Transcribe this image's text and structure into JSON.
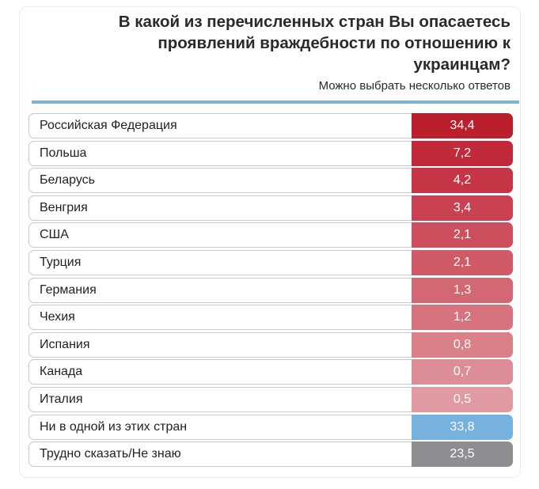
{
  "header": {
    "title": "В какой из перечисленных стран Вы опасаетесь проявлений враждебности по отношению к украинцам?",
    "subtitle": "Можно выбрать несколько ответов"
  },
  "colors": {
    "countries_strong": "#bb1f2e",
    "countries_light": "#e5a0a8",
    "none": "#77b2de",
    "dont_know": "#8e8e92",
    "rule": "#7bb3da"
  },
  "chart_data": {
    "type": "table",
    "title": "В какой из перечисленных стран Вы опасаетесь проявлений враждебности по отношению к украинцам?",
    "subtitle": "Можно выбрать несколько ответов",
    "rows": [
      {
        "label": "Российская Федерация",
        "value": "34,4",
        "color": "#bb1f2e"
      },
      {
        "label": "Польша",
        "value": "7,2",
        "color": "#c12a3a"
      },
      {
        "label": "Беларусь",
        "value": "4,2",
        "color": "#c63545"
      },
      {
        "label": "Венгрия",
        "value": "3,4",
        "color": "#ca4252"
      },
      {
        "label": "США",
        "value": "2,1",
        "color": "#cd4e5d"
      },
      {
        "label": "Турция",
        "value": "2,1",
        "color": "#d05a68"
      },
      {
        "label": "Германия",
        "value": "1,3",
        "color": "#d36773"
      },
      {
        "label": "Чехия",
        "value": "1,2",
        "color": "#d6737e"
      },
      {
        "label": "Испания",
        "value": "0,8",
        "color": "#d98089"
      },
      {
        "label": "Канада",
        "value": "0,7",
        "color": "#dd8d95"
      },
      {
        "label": "Италия",
        "value": "0,5",
        "color": "#e29aa2"
      },
      {
        "label": "Ни в одной из этих стран",
        "value": "33,8",
        "color": "#77b2de"
      },
      {
        "label": "Трудно сказать/Не знаю",
        "value": "23,5",
        "color": "#8e8e92"
      }
    ]
  }
}
